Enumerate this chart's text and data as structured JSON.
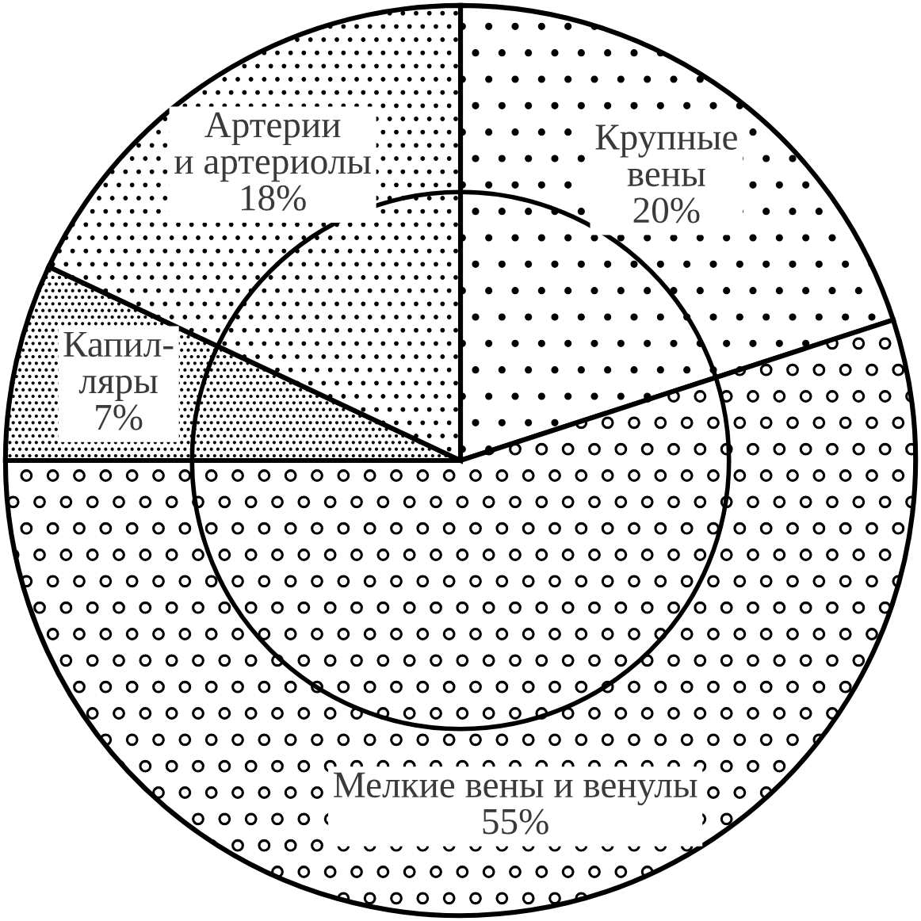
{
  "chart_data": {
    "type": "pie",
    "categories": [
      "Крупные\nвены",
      "Мелкие вены и венулы",
      "Капил-\nляры",
      "Артерии\nи артериолы"
    ],
    "values": [
      20,
      55,
      7,
      18
    ],
    "colors": [
      "#ffffff",
      "#ffffff",
      "#ffffff",
      "#ffffff"
    ],
    "value_labels": [
      "20%",
      "55%",
      "7%",
      "18%"
    ]
  }
}
